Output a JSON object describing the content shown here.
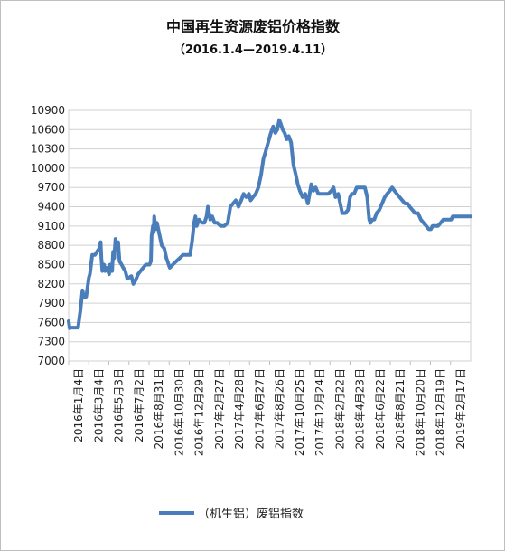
{
  "chart_data": {
    "type": "line",
    "title": "中国再生资源废铝价格指数",
    "subtitle": "（2016.1.4—2019.4.11）",
    "ylim": [
      7000,
      10900
    ],
    "yticks": [
      7000,
      7300,
      7600,
      7900,
      8200,
      8500,
      8800,
      9100,
      9400,
      9700,
      10000,
      10300,
      10600,
      10900
    ],
    "x_start": "2016-01-04",
    "x_end": "2019-04-11",
    "xtick_labels": [
      "2016年1月4日",
      "2016年3月4日",
      "2016年5月3日",
      "2016年7月2日",
      "2016年8月31日",
      "2016年10月30日",
      "2016年12月29日",
      "2017年2月27日",
      "2017年4月28日",
      "2017年6月27日",
      "2017年8月26日",
      "2017年10月25日",
      "2017年12月24日",
      "2018年2月22日",
      "2018年4月23日",
      "2018年6月22日",
      "2018年8月21日",
      "2018年10月20日",
      "2018年12月19日",
      "2019年2月17日"
    ],
    "grid": true,
    "legend_position": "bottom",
    "series": [
      {
        "name": "（机生铝）废铝指数",
        "color": "#4a7ebb",
        "points": [
          [
            "2016-01-04",
            7620
          ],
          [
            "2016-01-07",
            7510
          ],
          [
            "2016-01-12",
            7520
          ],
          [
            "2016-01-22",
            7520
          ],
          [
            "2016-02-01",
            7520
          ],
          [
            "2016-02-08",
            7800
          ],
          [
            "2016-02-14",
            8100
          ],
          [
            "2016-02-18",
            8000
          ],
          [
            "2016-02-25",
            8000
          ],
          [
            "2016-03-04",
            8300
          ],
          [
            "2016-03-07",
            8350
          ],
          [
            "2016-03-14",
            8650
          ],
          [
            "2016-03-22",
            8650
          ],
          [
            "2016-03-28",
            8700
          ],
          [
            "2016-04-04",
            8750
          ],
          [
            "2016-04-08",
            8850
          ],
          [
            "2016-04-10",
            8600
          ],
          [
            "2016-04-13",
            8400
          ],
          [
            "2016-04-18",
            8500
          ],
          [
            "2016-04-21",
            8400
          ],
          [
            "2016-04-26",
            8450
          ],
          [
            "2016-05-03",
            8350
          ],
          [
            "2016-05-06",
            8500
          ],
          [
            "2016-05-12",
            8400
          ],
          [
            "2016-05-15",
            8700
          ],
          [
            "2016-05-18",
            8600
          ],
          [
            "2016-05-22",
            8900
          ],
          [
            "2016-05-26",
            8750
          ],
          [
            "2016-05-30",
            8850
          ],
          [
            "2016-06-03",
            8550
          ],
          [
            "2016-06-09",
            8500
          ],
          [
            "2016-06-14",
            8450
          ],
          [
            "2016-06-20",
            8400
          ],
          [
            "2016-06-26",
            8280
          ],
          [
            "2016-07-02",
            8300
          ],
          [
            "2016-07-08",
            8320
          ],
          [
            "2016-07-14",
            8200
          ],
          [
            "2016-07-20",
            8250
          ],
          [
            "2016-07-28",
            8350
          ],
          [
            "2016-08-04",
            8400
          ],
          [
            "2016-08-12",
            8450
          ],
          [
            "2016-08-20",
            8500
          ],
          [
            "2016-08-31",
            8500
          ],
          [
            "2016-09-04",
            8550
          ],
          [
            "2016-09-06",
            8950
          ],
          [
            "2016-09-10",
            9100
          ],
          [
            "2016-09-12",
            9000
          ],
          [
            "2016-09-14",
            9250
          ],
          [
            "2016-09-18",
            9050
          ],
          [
            "2016-09-22",
            9150
          ],
          [
            "2016-09-28",
            9000
          ],
          [
            "2016-10-06",
            8800
          ],
          [
            "2016-10-14",
            8750
          ],
          [
            "2016-10-20",
            8600
          ],
          [
            "2016-10-30",
            8450
          ],
          [
            "2016-11-08",
            8500
          ],
          [
            "2016-11-18",
            8550
          ],
          [
            "2016-11-28",
            8600
          ],
          [
            "2016-12-08",
            8650
          ],
          [
            "2016-12-18",
            8650
          ],
          [
            "2016-12-29",
            8650
          ],
          [
            "2017-01-04",
            8850
          ],
          [
            "2017-01-10",
            9150
          ],
          [
            "2017-01-14",
            9250
          ],
          [
            "2017-01-18",
            9100
          ],
          [
            "2017-01-25",
            9200
          ],
          [
            "2017-02-02",
            9150
          ],
          [
            "2017-02-10",
            9150
          ],
          [
            "2017-02-16",
            9250
          ],
          [
            "2017-02-20",
            9400
          ],
          [
            "2017-02-24",
            9300
          ],
          [
            "2017-02-27",
            9200
          ],
          [
            "2017-03-05",
            9250
          ],
          [
            "2017-03-12",
            9150
          ],
          [
            "2017-03-20",
            9150
          ],
          [
            "2017-03-30",
            9100
          ],
          [
            "2017-04-10",
            9100
          ],
          [
            "2017-04-20",
            9150
          ],
          [
            "2017-04-28",
            9400
          ],
          [
            "2017-05-06",
            9450
          ],
          [
            "2017-05-14",
            9500
          ],
          [
            "2017-05-22",
            9400
          ],
          [
            "2017-05-30",
            9500
          ],
          [
            "2017-06-06",
            9600
          ],
          [
            "2017-06-14",
            9550
          ],
          [
            "2017-06-22",
            9600
          ],
          [
            "2017-06-27",
            9500
          ],
          [
            "2017-07-04",
            9550
          ],
          [
            "2017-07-12",
            9600
          ],
          [
            "2017-07-20",
            9700
          ],
          [
            "2017-07-28",
            9900
          ],
          [
            "2017-08-04",
            10150
          ],
          [
            "2017-08-10",
            10250
          ],
          [
            "2017-08-18",
            10400
          ],
          [
            "2017-08-26",
            10550
          ],
          [
            "2017-09-02",
            10650
          ],
          [
            "2017-09-08",
            10550
          ],
          [
            "2017-09-14",
            10600
          ],
          [
            "2017-09-20",
            10750
          ],
          [
            "2017-09-24",
            10700
          ],
          [
            "2017-09-30",
            10600
          ],
          [
            "2017-10-06",
            10550
          ],
          [
            "2017-10-12",
            10450
          ],
          [
            "2017-10-18",
            10500
          ],
          [
            "2017-10-25",
            10400
          ],
          [
            "2017-11-01",
            10050
          ],
          [
            "2017-11-08",
            9900
          ],
          [
            "2017-11-14",
            9750
          ],
          [
            "2017-11-20",
            9650
          ],
          [
            "2017-11-28",
            9550
          ],
          [
            "2017-12-06",
            9600
          ],
          [
            "2017-12-14",
            9450
          ],
          [
            "2017-12-24",
            9750
          ],
          [
            "2017-12-30",
            9650
          ],
          [
            "2018-01-06",
            9700
          ],
          [
            "2018-01-14",
            9600
          ],
          [
            "2018-01-22",
            9600
          ],
          [
            "2018-02-02",
            9600
          ],
          [
            "2018-02-12",
            9600
          ],
          [
            "2018-02-22",
            9650
          ],
          [
            "2018-02-28",
            9700
          ],
          [
            "2018-03-06",
            9550
          ],
          [
            "2018-03-14",
            9600
          ],
          [
            "2018-03-20",
            9450
          ],
          [
            "2018-03-26",
            9300
          ],
          [
            "2018-04-04",
            9300
          ],
          [
            "2018-04-12",
            9350
          ],
          [
            "2018-04-18",
            9550
          ],
          [
            "2018-04-23",
            9600
          ],
          [
            "2018-04-30",
            9600
          ],
          [
            "2018-05-08",
            9700
          ],
          [
            "2018-05-16",
            9700
          ],
          [
            "2018-05-24",
            9700
          ],
          [
            "2018-06-01",
            9700
          ],
          [
            "2018-06-08",
            9550
          ],
          [
            "2018-06-14",
            9200
          ],
          [
            "2018-06-18",
            9150
          ],
          [
            "2018-06-22",
            9200
          ],
          [
            "2018-06-29",
            9200
          ],
          [
            "2018-07-06",
            9300
          ],
          [
            "2018-07-14",
            9350
          ],
          [
            "2018-07-22",
            9450
          ],
          [
            "2018-07-30",
            9550
          ],
          [
            "2018-08-06",
            9600
          ],
          [
            "2018-08-14",
            9650
          ],
          [
            "2018-08-21",
            9700
          ],
          [
            "2018-08-28",
            9650
          ],
          [
            "2018-09-04",
            9600
          ],
          [
            "2018-09-12",
            9550
          ],
          [
            "2018-09-20",
            9500
          ],
          [
            "2018-09-28",
            9450
          ],
          [
            "2018-10-06",
            9450
          ],
          [
            "2018-10-12",
            9400
          ],
          [
            "2018-10-20",
            9350
          ],
          [
            "2018-10-28",
            9300
          ],
          [
            "2018-11-06",
            9300
          ],
          [
            "2018-11-14",
            9200
          ],
          [
            "2018-11-22",
            9150
          ],
          [
            "2018-11-30",
            9100
          ],
          [
            "2018-12-08",
            9050
          ],
          [
            "2018-12-14",
            9050
          ],
          [
            "2018-12-19",
            9100
          ],
          [
            "2018-12-26",
            9100
          ],
          [
            "2019-01-04",
            9100
          ],
          [
            "2019-01-12",
            9150
          ],
          [
            "2019-01-20",
            9200
          ],
          [
            "2019-01-28",
            9200
          ],
          [
            "2019-02-06",
            9200
          ],
          [
            "2019-02-12",
            9200
          ],
          [
            "2019-02-17",
            9250
          ],
          [
            "2019-02-24",
            9250
          ],
          [
            "2019-03-06",
            9250
          ],
          [
            "2019-03-14",
            9250
          ],
          [
            "2019-03-22",
            9250
          ],
          [
            "2019-04-11",
            9250
          ]
        ]
      }
    ]
  }
}
